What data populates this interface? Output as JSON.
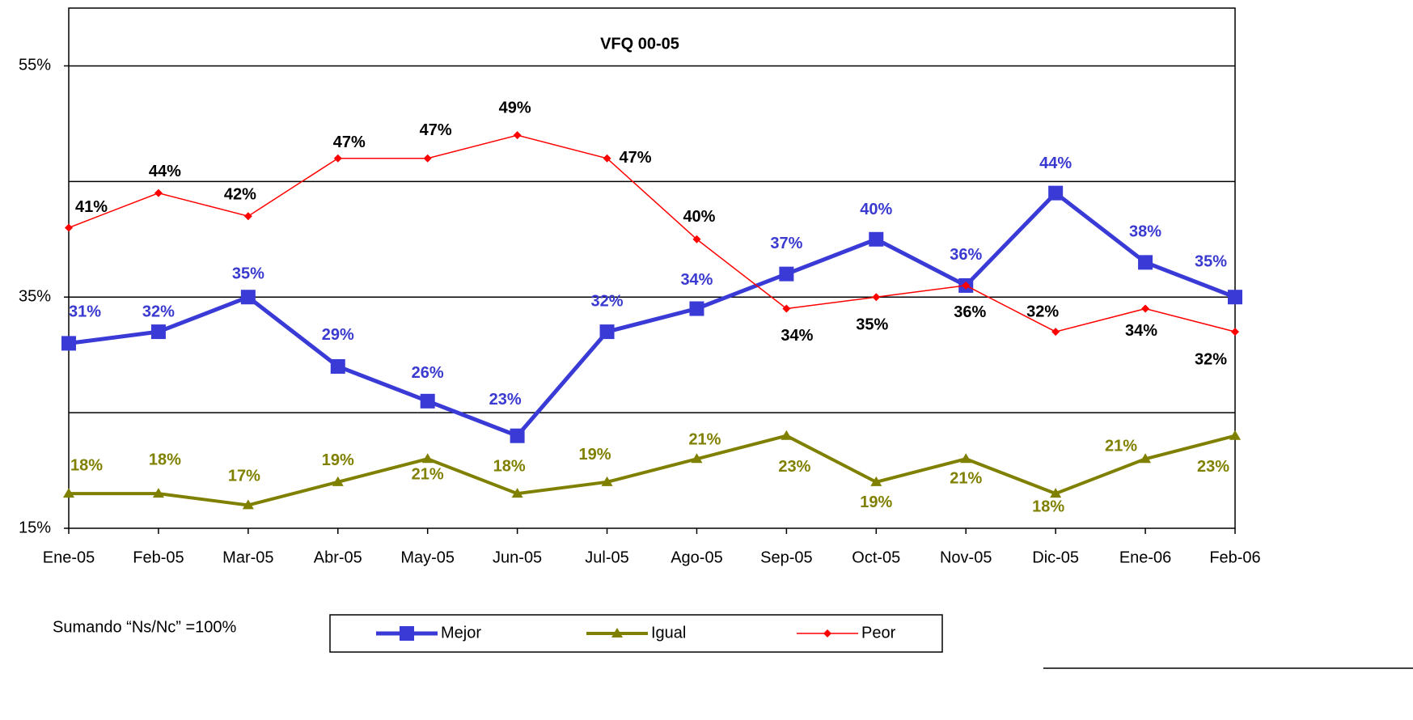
{
  "chart_data": {
    "type": "line",
    "title": "VFQ 00-05",
    "note": "Sumando “Ns/Nc” =100%",
    "categories": [
      "Ene-05",
      "Feb-05",
      "Mar-05",
      "Abr-05",
      "May-05",
      "Jun-05",
      "Jul-05",
      "Ago-05",
      "Sep-05",
      "Oct-05",
      "Nov-05",
      "Dic-05",
      "Ene-06",
      "Feb-06"
    ],
    "ylim": [
      15,
      60
    ],
    "yticks": [
      {
        "value": 15,
        "label": "15%"
      },
      {
        "value": 35,
        "label": "35%"
      },
      {
        "value": 55,
        "label": "55%"
      }
    ],
    "ygrid": [
      25,
      35,
      45,
      55
    ],
    "series": [
      {
        "name": "Mejor",
        "color": "#3a3ad6",
        "label_color": "#3a3ad0",
        "marker": "square",
        "values": [
          31,
          32,
          35,
          29,
          26,
          23,
          32,
          34,
          37,
          40,
          36,
          44,
          38,
          35
        ],
        "value_labels": [
          "31%",
          "32%",
          "35%",
          "29%",
          "26%",
          "23%",
          "32%",
          "34%",
          "37%",
          "40%",
          "36%",
          "44%",
          "38%",
          "35%"
        ]
      },
      {
        "name": "Igual",
        "color": "#808000",
        "label_color": "#808000",
        "marker": "triangle",
        "values": [
          18,
          18,
          17,
          19,
          21,
          18,
          19,
          21,
          23,
          19,
          21,
          18,
          21,
          23
        ],
        "value_labels": [
          "18%",
          "18%",
          "17%",
          "19%",
          "21%",
          "18%",
          "19%",
          "21%",
          "23%",
          "19%",
          "21%",
          "18%",
          "21%",
          "23%"
        ]
      },
      {
        "name": "Peor",
        "color": "#ff0000",
        "label_color": "#000000",
        "marker": "diamond",
        "values": [
          41,
          44,
          42,
          47,
          47,
          49,
          47,
          40,
          34,
          35,
          36,
          32,
          34,
          32
        ],
        "value_labels": [
          "41%",
          "44%",
          "42%",
          "47%",
          "47%",
          "49%",
          "47%",
          "40%",
          "34%",
          "35%",
          "36%",
          "32%",
          "34%",
          "32%"
        ]
      }
    ]
  }
}
